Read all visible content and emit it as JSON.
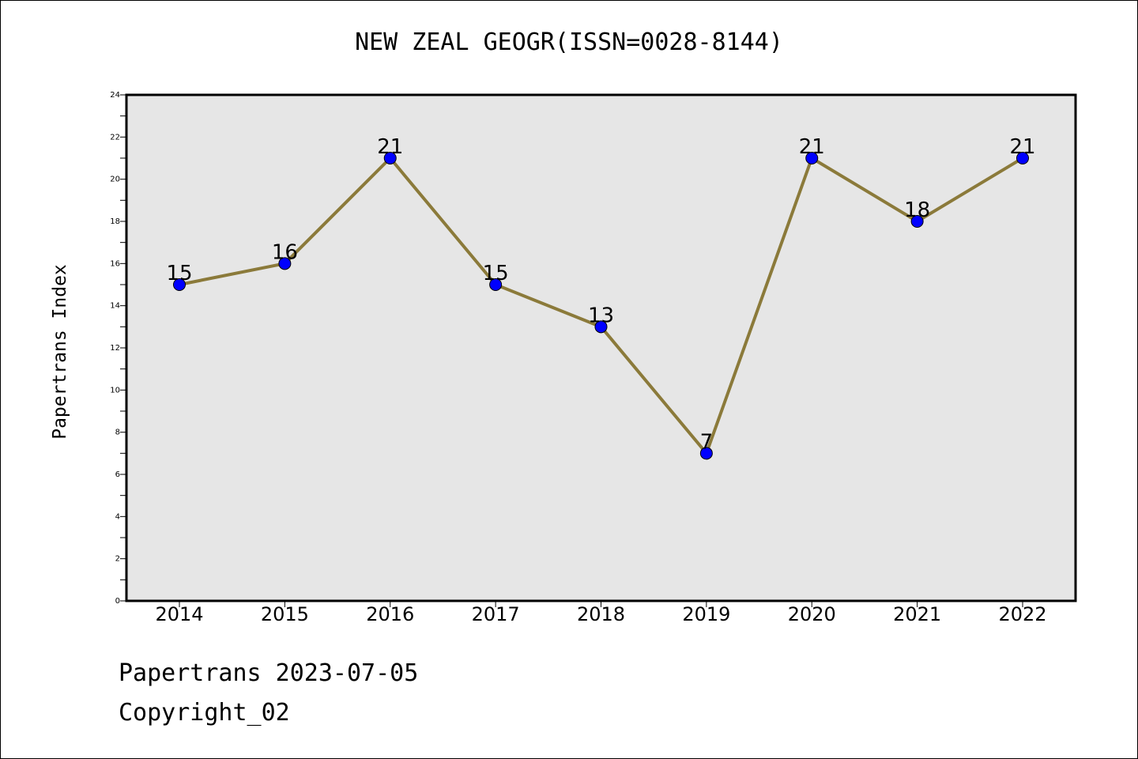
{
  "chart_data": {
    "type": "line",
    "title": "NEW ZEAL GEOGR(ISSN=0028-8144)",
    "ylabel": "Papertrans Index",
    "xlabel": "",
    "categories": [
      "2014",
      "2015",
      "2016",
      "2017",
      "2018",
      "2019",
      "2020",
      "2021",
      "2022"
    ],
    "values": [
      15,
      16,
      21,
      15,
      13,
      7,
      21,
      18,
      21
    ],
    "data_labels": [
      "15",
      "16",
      "21",
      "15",
      "13",
      "7",
      "21",
      "18",
      "21"
    ],
    "ylim": [
      0,
      24
    ],
    "y_ticks": [
      "0",
      "2",
      "4",
      "6",
      "8",
      "10",
      "12",
      "14",
      "16",
      "18",
      "20",
      "22",
      "24"
    ],
    "grid": false,
    "legend": "none",
    "colors": {
      "line": "#8B7A3A",
      "marker": "#0000FF",
      "plot_background": "#E6E6E6"
    }
  },
  "footer": {
    "line1": "Papertrans 2023-07-05",
    "line2": "Copyright_02"
  }
}
